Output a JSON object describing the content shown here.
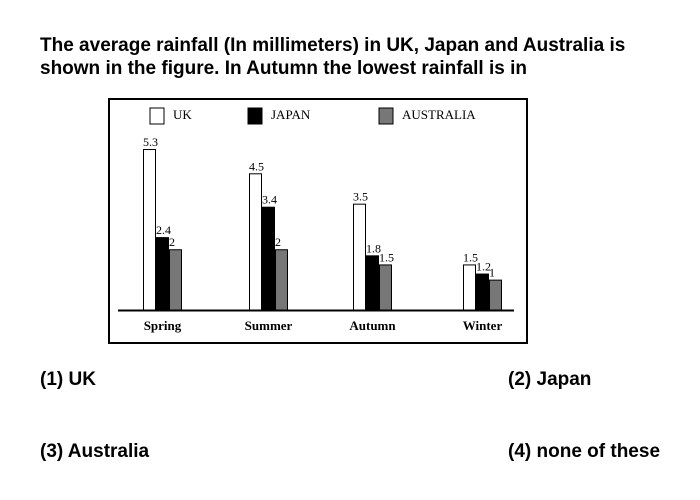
{
  "question": {
    "line1": "The average rainfall (In millimeters) in UK, Japan and Australia is",
    "line2": "shown in the figure. In Autumn the lowest rainfall is in"
  },
  "options": {
    "opt1": "(1) UK",
    "opt2": "(2) Japan",
    "opt3": "(3) Australia",
    "opt4": "(4) none of these"
  },
  "chart_data": {
    "type": "bar",
    "categories": [
      "Spring",
      "Summer",
      "Autumn",
      "Winter"
    ],
    "series": [
      {
        "name": "UK",
        "values": [
          5.3,
          4.5,
          3.5,
          1.5
        ],
        "color": "#ffffff"
      },
      {
        "name": "JAPAN",
        "values": [
          2.4,
          3.4,
          1.8,
          1.2
        ],
        "color": "#000000"
      },
      {
        "name": "AUSTRALIA",
        "values": [
          2,
          2,
          1.5,
          1
        ],
        "color": "#777777"
      }
    ],
    "data_labels": [
      [
        "5.3",
        "4.5",
        "3.5",
        "1.5"
      ],
      [
        "2.4",
        "3.4",
        "1.8",
        "1.2"
      ],
      [
        "2",
        "2",
        "1.5",
        "1"
      ]
    ],
    "legend_position": "top",
    "ylim": [
      0,
      5.3
    ],
    "grid": false,
    "y_axis_visible": false
  }
}
